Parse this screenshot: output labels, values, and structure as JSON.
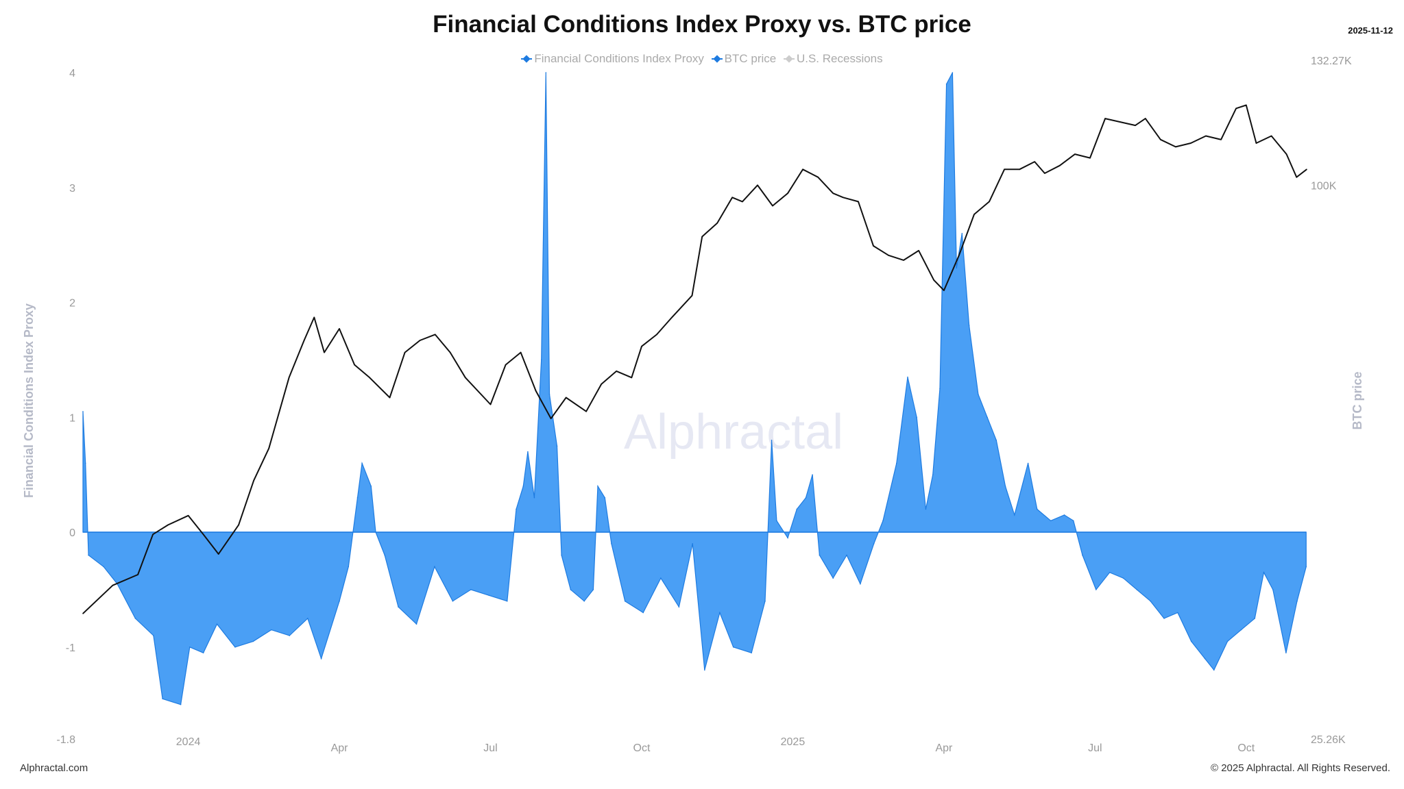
{
  "header": {
    "title": "Financial Conditions Index Proxy vs. BTC price",
    "date": "2025-11-12"
  },
  "legend": [
    {
      "label": "Financial Conditions Index Proxy"
    },
    {
      "label": "BTC price"
    },
    {
      "label": "U.S. Recessions"
    }
  ],
  "footer": {
    "left": "Alphractal.com",
    "right": "© 2025 Alphractal. All Rights Reserved."
  },
  "watermark": "Alphractal",
  "colors": {
    "fci": "#4a9ff5",
    "fci_line": "#1e7be0",
    "btc": "#111111"
  },
  "chart_data": {
    "type": "area",
    "title": "Financial Conditions Index Proxy vs. BTC price",
    "x_unit": "months since 2023-11-01",
    "xlim": [
      -0.09,
      24.2
    ],
    "x_ticks": [
      {
        "m": 2,
        "label": "2024"
      },
      {
        "m": 5,
        "label": "Apr"
      },
      {
        "m": 8,
        "label": "Jul"
      },
      {
        "m": 11,
        "label": "Oct"
      },
      {
        "m": 14,
        "label": "2025"
      },
      {
        "m": 17,
        "label": "Apr"
      },
      {
        "m": 20,
        "label": "Jul"
      },
      {
        "m": 23,
        "label": "Oct"
      }
    ],
    "y_left": {
      "label": "Financial Conditions Index Proxy",
      "ylim": [
        -1.8,
        4
      ],
      "ticks": [
        "4",
        "3",
        "2",
        "1",
        "0",
        "-1",
        "-1.8"
      ],
      "tick_values": [
        4,
        3,
        2,
        1,
        0,
        -1,
        -1.8
      ]
    },
    "y_right": {
      "label": "BTC price",
      "scale": "log",
      "ylim": [
        25.26,
        132.27
      ],
      "ticks": [
        {
          "v": 132.27,
          "label": "132.27K"
        },
        {
          "v": 100,
          "label": "100K"
        },
        {
          "v": 25.26,
          "label": "25.26K"
        }
      ]
    },
    "series": [
      {
        "name": "Financial Conditions Index Proxy",
        "type": "area",
        "points": [
          [
            -0.09,
            1.05
          ],
          [
            -0.04,
            0.6
          ],
          [
            0.02,
            -0.2
          ],
          [
            0.32,
            -0.3
          ],
          [
            0.59,
            -0.45
          ],
          [
            0.95,
            -0.75
          ],
          [
            1.31,
            -0.9
          ],
          [
            1.49,
            -1.45
          ],
          [
            1.85,
            -1.5
          ],
          [
            2.03,
            -1.0
          ],
          [
            2.3,
            -1.05
          ],
          [
            2.57,
            -0.8
          ],
          [
            2.93,
            -1.0
          ],
          [
            3.29,
            -0.95
          ],
          [
            3.65,
            -0.85
          ],
          [
            4.01,
            -0.9
          ],
          [
            4.37,
            -0.75
          ],
          [
            4.64,
            -1.1
          ],
          [
            5.0,
            -0.6
          ],
          [
            5.18,
            -0.3
          ],
          [
            5.36,
            0.3
          ],
          [
            5.45,
            0.6
          ],
          [
            5.63,
            0.4
          ],
          [
            5.72,
            0.0
          ],
          [
            5.9,
            -0.2
          ],
          [
            6.17,
            -0.65
          ],
          [
            6.53,
            -0.8
          ],
          [
            6.89,
            -0.3
          ],
          [
            7.25,
            -0.6
          ],
          [
            7.61,
            -0.5
          ],
          [
            7.97,
            -0.55
          ],
          [
            8.33,
            -0.6
          ],
          [
            8.51,
            0.2
          ],
          [
            8.65,
            0.4
          ],
          [
            8.74,
            0.7
          ],
          [
            8.87,
            0.3
          ],
          [
            9.01,
            1.5
          ],
          [
            9.1,
            4.0
          ],
          [
            9.17,
            1.2
          ],
          [
            9.32,
            0.75
          ],
          [
            9.41,
            -0.2
          ],
          [
            9.59,
            -0.5
          ],
          [
            9.86,
            -0.6
          ],
          [
            10.04,
            -0.5
          ],
          [
            10.13,
            0.4
          ],
          [
            10.27,
            0.3
          ],
          [
            10.4,
            -0.1
          ],
          [
            10.67,
            -0.6
          ],
          [
            11.03,
            -0.7
          ],
          [
            11.38,
            -0.4
          ],
          [
            11.74,
            -0.65
          ],
          [
            12.01,
            -0.1
          ],
          [
            12.25,
            -1.2
          ],
          [
            12.55,
            -0.7
          ],
          [
            12.82,
            -1.0
          ],
          [
            13.18,
            -1.05
          ],
          [
            13.45,
            -0.6
          ],
          [
            13.58,
            0.8
          ],
          [
            13.68,
            0.1
          ],
          [
            13.9,
            -0.05
          ],
          [
            14.08,
            0.2
          ],
          [
            14.26,
            0.3
          ],
          [
            14.39,
            0.5
          ],
          [
            14.53,
            -0.2
          ],
          [
            14.8,
            -0.4
          ],
          [
            15.07,
            -0.2
          ],
          [
            15.34,
            -0.45
          ],
          [
            15.61,
            -0.1
          ],
          [
            15.79,
            0.1
          ],
          [
            16.06,
            0.6
          ],
          [
            16.28,
            1.35
          ],
          [
            16.46,
            1.0
          ],
          [
            16.64,
            0.2
          ],
          [
            16.78,
            0.5
          ],
          [
            16.92,
            1.25
          ],
          [
            17.05,
            3.9
          ],
          [
            17.17,
            4.0
          ],
          [
            17.25,
            2.3
          ],
          [
            17.36,
            2.6
          ],
          [
            17.5,
            1.8
          ],
          [
            17.68,
            1.2
          ],
          [
            17.86,
            1.0
          ],
          [
            18.04,
            0.8
          ],
          [
            18.22,
            0.4
          ],
          [
            18.4,
            0.15
          ],
          [
            18.67,
            0.6
          ],
          [
            18.85,
            0.2
          ],
          [
            19.12,
            0.1
          ],
          [
            19.39,
            0.15
          ],
          [
            19.57,
            0.1
          ],
          [
            19.75,
            -0.2
          ],
          [
            20.02,
            -0.5
          ],
          [
            20.29,
            -0.35
          ],
          [
            20.56,
            -0.4
          ],
          [
            20.83,
            -0.5
          ],
          [
            21.1,
            -0.6
          ],
          [
            21.37,
            -0.75
          ],
          [
            21.64,
            -0.7
          ],
          [
            21.91,
            -0.95
          ],
          [
            22.18,
            -1.1
          ],
          [
            22.36,
            -1.2
          ],
          [
            22.63,
            -0.95
          ],
          [
            22.9,
            -0.85
          ],
          [
            23.17,
            -0.75
          ],
          [
            23.35,
            -0.35
          ],
          [
            23.53,
            -0.5
          ],
          [
            23.79,
            -1.05
          ],
          [
            24.01,
            -0.6
          ],
          [
            24.19,
            -0.3
          ]
        ]
      },
      {
        "name": "BTC price",
        "type": "line",
        "unit": "K USD",
        "points": [
          [
            -0.09,
            34.5
          ],
          [
            0.5,
            37
          ],
          [
            1.0,
            38
          ],
          [
            1.3,
            42
          ],
          [
            1.6,
            43
          ],
          [
            2.0,
            44
          ],
          [
            2.3,
            42
          ],
          [
            2.6,
            40
          ],
          [
            3.0,
            43
          ],
          [
            3.3,
            48
          ],
          [
            3.6,
            52
          ],
          [
            4.0,
            62
          ],
          [
            4.3,
            68
          ],
          [
            4.5,
            72
          ],
          [
            4.7,
            66
          ],
          [
            5.0,
            70
          ],
          [
            5.3,
            64
          ],
          [
            5.6,
            62
          ],
          [
            6.0,
            59
          ],
          [
            6.3,
            66
          ],
          [
            6.6,
            68
          ],
          [
            6.9,
            69
          ],
          [
            7.2,
            66
          ],
          [
            7.5,
            62
          ],
          [
            8.0,
            58
          ],
          [
            8.3,
            64
          ],
          [
            8.6,
            66
          ],
          [
            8.9,
            60
          ],
          [
            9.2,
            56
          ],
          [
            9.5,
            59
          ],
          [
            9.9,
            57
          ],
          [
            10.2,
            61
          ],
          [
            10.5,
            63
          ],
          [
            10.8,
            62
          ],
          [
            11.0,
            67
          ],
          [
            11.3,
            69
          ],
          [
            11.6,
            72
          ],
          [
            12.0,
            76
          ],
          [
            12.2,
            88
          ],
          [
            12.5,
            91
          ],
          [
            12.8,
            97
          ],
          [
            13.0,
            96
          ],
          [
            13.3,
            100
          ],
          [
            13.6,
            95
          ],
          [
            13.9,
            98
          ],
          [
            14.2,
            104
          ],
          [
            14.5,
            102
          ],
          [
            14.8,
            98
          ],
          [
            15.0,
            97
          ],
          [
            15.3,
            96
          ],
          [
            15.6,
            86
          ],
          [
            15.9,
            84
          ],
          [
            16.2,
            83
          ],
          [
            16.5,
            85
          ],
          [
            16.8,
            79
          ],
          [
            17.0,
            77
          ],
          [
            17.3,
            84
          ],
          [
            17.6,
            93
          ],
          [
            17.9,
            96
          ],
          [
            18.2,
            104
          ],
          [
            18.5,
            104
          ],
          [
            18.8,
            106
          ],
          [
            19.0,
            103
          ],
          [
            19.3,
            105
          ],
          [
            19.6,
            108
          ],
          [
            19.9,
            107
          ],
          [
            20.2,
            118
          ],
          [
            20.5,
            117
          ],
          [
            20.8,
            116
          ],
          [
            21.0,
            118
          ],
          [
            21.3,
            112
          ],
          [
            21.6,
            110
          ],
          [
            21.9,
            111
          ],
          [
            22.2,
            113
          ],
          [
            22.5,
            112
          ],
          [
            22.8,
            121
          ],
          [
            23.0,
            122
          ],
          [
            23.2,
            111
          ],
          [
            23.5,
            113
          ],
          [
            23.8,
            108
          ],
          [
            24.0,
            102
          ],
          [
            24.2,
            104
          ]
        ]
      },
      {
        "name": "U.S. Recessions",
        "points": []
      }
    ]
  }
}
